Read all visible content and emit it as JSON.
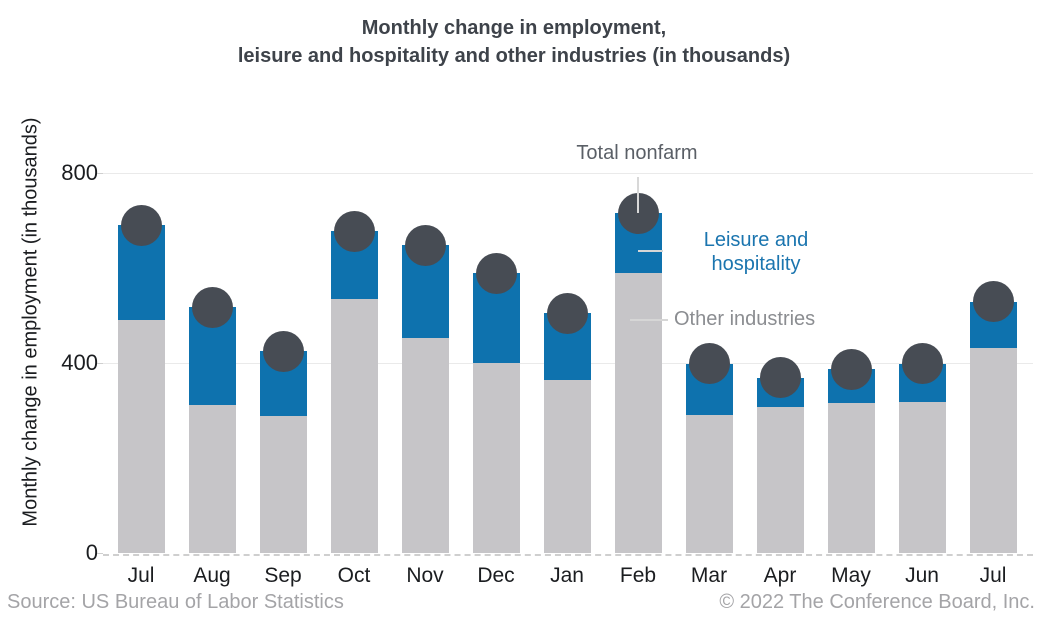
{
  "title": {
    "line1": "Monthly change in employment,",
    "line2": "leisure and hospitality and other industries (in thousands)"
  },
  "y_axis": {
    "label": "Monthly change in employment (in thousands)"
  },
  "annotations": {
    "total_nonfarm": "Total nonfarm",
    "leisure_line1": "Leisure and",
    "leisure_line2": "hospitality",
    "other_industries": "Other industries"
  },
  "footer": {
    "source": "Source: US Bureau of Labor Statistics",
    "copyright": "© 2022 The Conference Board, Inc."
  },
  "colors": {
    "leisure_bar": "#0e72ae",
    "other_bar": "#c6c5c8",
    "total_marker": "#474c54",
    "leisure_text": "#1b75af",
    "other_text": "#8b8d91",
    "total_text": "#5a5f66",
    "gridline": "#eaeaea",
    "axis_dash": "#cfcfcf"
  },
  "chart_data": {
    "type": "bar",
    "stacked": true,
    "title": "Monthly change in employment, leisure and hospitality and other industries (in thousands)",
    "ylabel": "Monthly change in employment (in thousands)",
    "categories": [
      "Jul",
      "Aug",
      "Sep",
      "Oct",
      "Nov",
      "Dec",
      "Jan",
      "Feb",
      "Mar",
      "Apr",
      "May",
      "Jun",
      "Jul"
    ],
    "series": [
      {
        "name": "Other industries",
        "color": "#c6c5c8",
        "values": [
          490,
          312,
          288,
          533,
          452,
          400,
          363,
          588,
          290,
          306,
          316,
          318,
          432
        ]
      },
      {
        "name": "Leisure and hospitality",
        "color": "#0e72ae",
        "values": [
          199,
          205,
          136,
          144,
          195,
          188,
          141,
          126,
          108,
          62,
          70,
          80,
          96
        ]
      }
    ],
    "markers": {
      "name": "Total nonfarm",
      "color": "#474c54",
      "values": [
        689,
        517,
        424,
        677,
        647,
        588,
        504,
        714,
        398,
        368,
        386,
        398,
        528
      ]
    },
    "yticks": [
      0,
      400,
      800
    ],
    "ylim": [
      0,
      970
    ],
    "grid": "horizontal",
    "legend_position": "annotated-inline"
  }
}
